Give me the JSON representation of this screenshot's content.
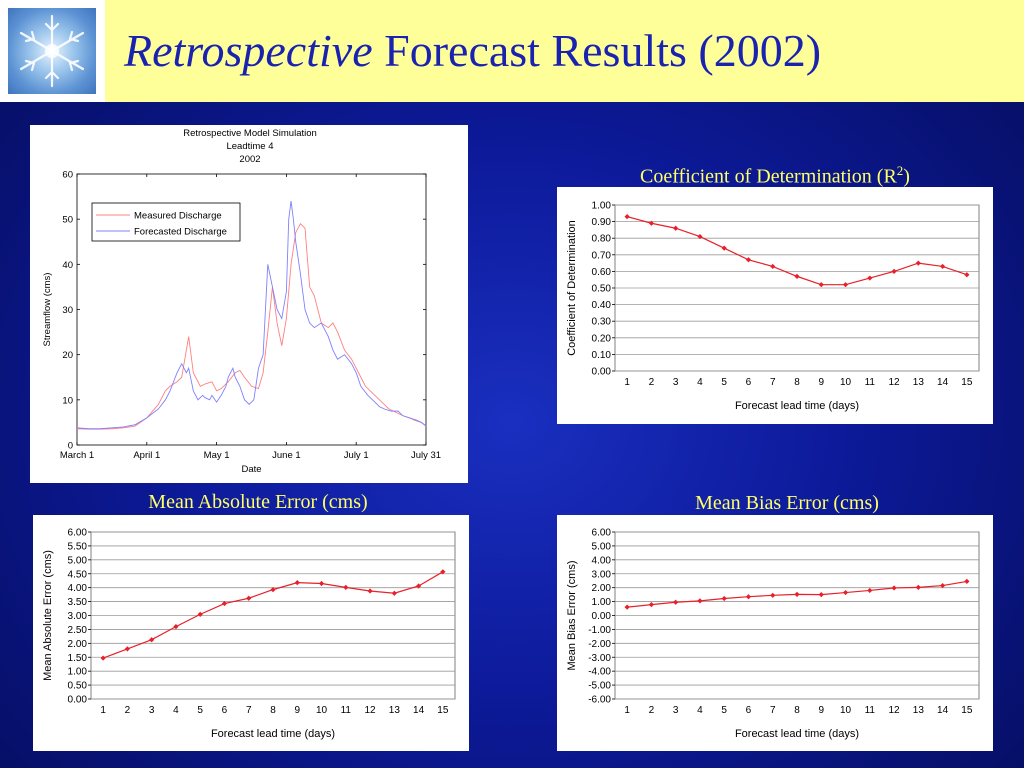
{
  "slide": {
    "title_italic": "Retrospective",
    "title_rest": " Forecast Results (2002)"
  },
  "logo_icon": "snowflake-icon",
  "colors": {
    "header_bg": "#ffff99",
    "title": "#1a23b0",
    "heading": "#ffff66",
    "series_red": "#e8202a",
    "measured": "#ff8080",
    "forecast": "#8080ff"
  },
  "headings": {
    "r2": "Coefficient of Determination (R",
    "r2_sup": "2",
    "r2_close": ")",
    "mae": "Mean Absolute Error (cms)",
    "mbe": "Mean Bias Error (cms)"
  },
  "chart_data": [
    {
      "id": "streamflow",
      "type": "line",
      "title": [
        "Retrospective Model Simulation",
        "Leadtime 4",
        "2002"
      ],
      "xlabel": "Date",
      "ylabel": "Streamflow (cms)",
      "xticks": [
        "March 1",
        "April 1",
        "May 1",
        "June 1",
        "July 1",
        "July 31"
      ],
      "ylim": [
        0,
        60
      ],
      "yticks": [
        0,
        10,
        20,
        30,
        40,
        50,
        60
      ],
      "legend_position": "top-left",
      "series": [
        {
          "name": "Measured Discharge",
          "color": "#ff8080",
          "x": [
            0,
            5,
            10,
            15,
            20,
            25,
            30,
            35,
            38,
            40,
            43,
            45,
            48,
            50,
            53,
            55,
            58,
            60,
            62,
            65,
            68,
            70,
            72,
            75,
            78,
            80,
            82,
            84,
            86,
            88,
            90,
            92,
            94,
            96,
            98,
            100,
            102,
            105,
            108,
            110,
            112,
            115,
            118,
            120,
            122,
            124,
            126,
            128,
            130,
            132,
            134,
            136,
            138,
            140,
            143,
            145,
            148,
            150
          ],
          "y": [
            3.6,
            3.5,
            3.5,
            3.6,
            3.8,
            4.2,
            6,
            9,
            12,
            13,
            14,
            15,
            24,
            16,
            13,
            13.5,
            14,
            12,
            12.5,
            14,
            16,
            16.5,
            15,
            13,
            12.5,
            16,
            25,
            35,
            27,
            22,
            28,
            40,
            47,
            49,
            48,
            35,
            33,
            27,
            26,
            27,
            25,
            21,
            19,
            17,
            15,
            13,
            12,
            11,
            10,
            9,
            8,
            7.5,
            7,
            6.5,
            6,
            5.5,
            5,
            4.2
          ]
        },
        {
          "name": "Forecasted Discharge",
          "color": "#8080ff",
          "x": [
            0,
            5,
            10,
            15,
            20,
            25,
            30,
            35,
            38,
            40,
            43,
            45,
            47,
            48,
            50,
            52,
            54,
            55,
            57,
            58,
            60,
            62,
            64,
            65,
            67,
            68,
            70,
            72,
            74,
            76,
            78,
            80,
            81,
            82,
            84,
            86,
            88,
            90,
            91,
            92,
            93,
            94,
            96,
            98,
            100,
            102,
            105,
            108,
            110,
            112,
            115,
            118,
            120,
            122,
            125,
            128,
            130,
            132,
            135,
            138,
            140,
            143,
            146,
            148,
            150
          ],
          "y": [
            3.8,
            3.6,
            3.6,
            3.8,
            4,
            4.5,
            6,
            8,
            10,
            12,
            16,
            18,
            16,
            17,
            12,
            10,
            11,
            10.5,
            10,
            11,
            9.5,
            11,
            13,
            15,
            17,
            15,
            13,
            10,
            9,
            10,
            17,
            20,
            30,
            40,
            35,
            30,
            28,
            34,
            50,
            54,
            50,
            45,
            38,
            30,
            27,
            26,
            27,
            24,
            21,
            19,
            20,
            18,
            16,
            13,
            11,
            9.5,
            8.5,
            8,
            7.5,
            7.5,
            6.5,
            6,
            5.5,
            5,
            4.2
          ]
        }
      ]
    },
    {
      "id": "r2",
      "type": "line",
      "xlabel": "Forecast lead time (days)",
      "ylabel": "Coefficient of Determination",
      "x": [
        1,
        2,
        3,
        4,
        5,
        6,
        7,
        8,
        9,
        10,
        11,
        12,
        13,
        14,
        15
      ],
      "ylim": [
        0,
        1
      ],
      "yticks": [
        "0.00",
        "0.10",
        "0.20",
        "0.30",
        "0.40",
        "0.50",
        "0.60",
        "0.70",
        "0.80",
        "0.90",
        "1.00"
      ],
      "series": [
        {
          "values": [
            0.93,
            0.89,
            0.86,
            0.81,
            0.74,
            0.67,
            0.63,
            0.57,
            0.52,
            0.52,
            0.56,
            0.6,
            0.65,
            0.63,
            0.58
          ]
        }
      ]
    },
    {
      "id": "mae",
      "type": "line",
      "xlabel": "Forecast lead time (days)",
      "ylabel": "Mean Absolute Error (cms)",
      "x": [
        1,
        2,
        3,
        4,
        5,
        6,
        7,
        8,
        9,
        10,
        11,
        12,
        13,
        14,
        15
      ],
      "ylim": [
        0,
        6
      ],
      "yticks": [
        "0.00",
        "0.50",
        "1.00",
        "1.50",
        "2.00",
        "2.50",
        "3.00",
        "3.50",
        "4.00",
        "4.50",
        "5.00",
        "5.50",
        "6.00"
      ],
      "series": [
        {
          "values": [
            1.47,
            1.8,
            2.13,
            2.6,
            3.04,
            3.43,
            3.62,
            3.93,
            4.18,
            4.15,
            4.01,
            3.88,
            3.8,
            4.06,
            4.57
          ]
        }
      ]
    },
    {
      "id": "mbe",
      "type": "line",
      "xlabel": "Forecast lead time (days)",
      "ylabel": "Mean Bias Error (cms)",
      "x": [
        1,
        2,
        3,
        4,
        5,
        6,
        7,
        8,
        9,
        10,
        11,
        12,
        13,
        14,
        15
      ],
      "ylim": [
        -6,
        6
      ],
      "yticks": [
        "-6.00",
        "-5.00",
        "-4.00",
        "-3.00",
        "-2.00",
        "-1.00",
        "0.00",
        "1.00",
        "2.00",
        "3.00",
        "4.00",
        "5.00",
        "6.00"
      ],
      "series": [
        {
          "values": [
            0.6,
            0.78,
            0.95,
            1.05,
            1.22,
            1.35,
            1.45,
            1.52,
            1.5,
            1.65,
            1.8,
            1.98,
            2.02,
            2.15,
            2.45
          ]
        }
      ]
    }
  ]
}
